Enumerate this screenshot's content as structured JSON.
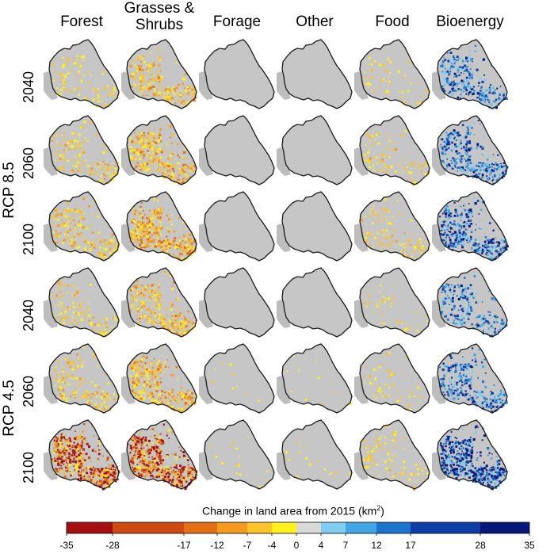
{
  "chart_data": {
    "type": "heatmap",
    "title": "",
    "columns": [
      "Forest",
      "Grasses &\nShrubs",
      "Forage",
      "Other",
      "Food",
      "Bioenergy"
    ],
    "scenarios": [
      {
        "name": "RCP 8.5",
        "years": [
          "2040",
          "2060",
          "2100"
        ]
      },
      {
        "name": "RCP 4.5",
        "years": [
          "2040",
          "2060",
          "2100"
        ]
      }
    ],
    "colorbar": {
      "label": "Change in land area from 2015 (km",
      "label_sup": "2",
      "label_end": ")",
      "range": [
        -35,
        35
      ],
      "ticks": [
        -35,
        -28,
        -17,
        -12,
        -7,
        -4,
        0,
        4,
        7,
        12,
        17,
        28,
        35
      ],
      "tick_labels": [
        "-35",
        "-28",
        "-17",
        "-12",
        "-7",
        "-4",
        "0",
        "4",
        "7",
        "12",
        "17",
        "28",
        "35"
      ],
      "bins": [
        {
          "from": -35,
          "to": -28,
          "color": "#a50f0f"
        },
        {
          "from": -28,
          "to": -17,
          "color": "#cf4a12"
        },
        {
          "from": -17,
          "to": -12,
          "color": "#e46f16"
        },
        {
          "from": -12,
          "to": -7,
          "color": "#f59a1e"
        },
        {
          "from": -7,
          "to": -4,
          "color": "#fbc328"
        },
        {
          "from": -4,
          "to": 0,
          "color": "#fff01e"
        },
        {
          "from": 0,
          "to": 4,
          "color": "#d9d9d9"
        },
        {
          "from": 4,
          "to": 7,
          "color": "#7fcdf0"
        },
        {
          "from": 7,
          "to": 12,
          "color": "#40a6e6"
        },
        {
          "from": 12,
          "to": 17,
          "color": "#1c74cc"
        },
        {
          "from": 17,
          "to": 28,
          "color": "#0d3ea6"
        },
        {
          "from": 28,
          "to": 35,
          "color": "#08187a"
        }
      ]
    },
    "intensity": {
      "note": "relative density of change pixels per panel (0 = none, 1 = very dense)",
      "values": [
        [
          0.18,
          0.45,
          0.0,
          0.0,
          0.12,
          0.55
        ],
        [
          0.28,
          0.6,
          0.0,
          0.0,
          0.18,
          0.62
        ],
        [
          0.38,
          0.72,
          0.0,
          0.0,
          0.22,
          0.7
        ],
        [
          0.22,
          0.5,
          0.0,
          0.0,
          0.08,
          0.45
        ],
        [
          0.3,
          0.6,
          0.02,
          0.02,
          0.1,
          0.55
        ],
        [
          0.9,
          0.95,
          0.03,
          0.03,
          0.18,
          0.95
        ]
      ]
    },
    "colors": {
      "land": "#c6c6c6",
      "outline": "#1a1a1a",
      "neighbor": "#bdbdbd"
    }
  }
}
